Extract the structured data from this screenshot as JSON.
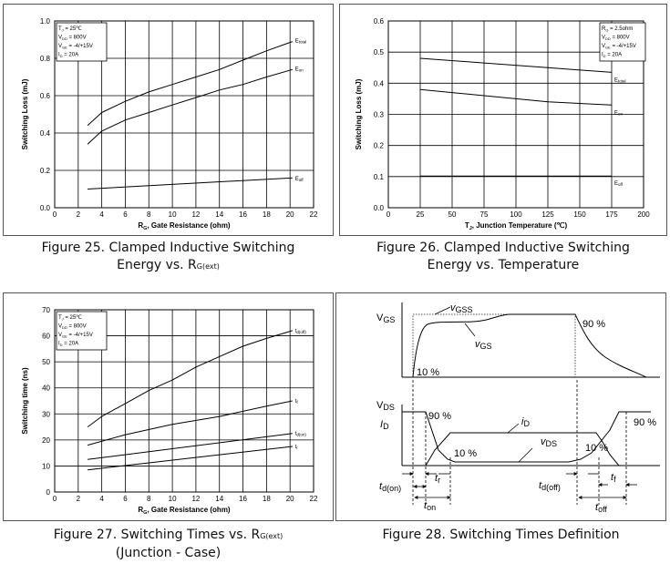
{
  "figures": [
    {
      "caption_line1": "Figure 25. Clamped Inductive Switching",
      "caption_line2_prefix": "Energy vs. R",
      "caption_line2_sub": "G(ext)",
      "conditions": [
        "T = 25℃",
        "V = 800V",
        "V = -4/+15V",
        "I = 20A"
      ]
    },
    {
      "caption_line1": "Figure 26. Clamped Inductive Switching",
      "caption_line2": "Energy vs. Temperature",
      "conditions": [
        "R = 2.5ohm",
        "V = 800V",
        "V = -4/+15V",
        "I = 20A"
      ]
    },
    {
      "caption_line1_prefix": "Figure 27. Switching Times vs. R",
      "caption_line1_sub": "G(ext)",
      "caption_line2": "(Junction - Case)",
      "conditions": [
        "T = 25℃",
        "V = 800V",
        "V = -4/+15V",
        "I = 20A"
      ]
    },
    {
      "caption": "Figure 28. Switching Times Definition"
    }
  ],
  "chart_data": [
    {
      "type": "line",
      "xlabel_main": "R",
      "xlabel_sub": "G",
      "xlabel_rest": ", Gate Resistance (ohm)",
      "ylabel": "Switching Loss (mJ)",
      "xlim": [
        0,
        22
      ],
      "ylim": [
        0,
        1.0
      ],
      "xticks": [
        0,
        2,
        4,
        6,
        8,
        10,
        12,
        14,
        16,
        18,
        20,
        22
      ],
      "yticks": [
        0.0,
        0.2,
        0.4,
        0.6,
        0.8,
        1.0
      ],
      "ytick_decimals": 1,
      "grid": true,
      "series": [
        {
          "name": "E",
          "name_sub": "total",
          "x": [
            2.8,
            4,
            6,
            8,
            10,
            12,
            14,
            16,
            18,
            20.2
          ],
          "values": [
            0.44,
            0.51,
            0.57,
            0.62,
            0.66,
            0.7,
            0.74,
            0.79,
            0.84,
            0.89
          ]
        },
        {
          "name": "E",
          "name_sub": "on",
          "x": [
            2.8,
            4,
            6,
            8,
            10,
            12,
            14,
            16,
            18,
            20.2
          ],
          "values": [
            0.34,
            0.41,
            0.47,
            0.51,
            0.55,
            0.59,
            0.63,
            0.66,
            0.7,
            0.74
          ]
        },
        {
          "name": "E",
          "name_sub": "off",
          "x": [
            2.8,
            20.2
          ],
          "values": [
            0.1,
            0.16
          ]
        }
      ]
    },
    {
      "type": "line",
      "xlabel_main": "T",
      "xlabel_sub": "J",
      "xlabel_rest": ", Junction Temperature (℃)",
      "ylabel": "Switching Loss (mJ)",
      "xlim": [
        0,
        200
      ],
      "ylim": [
        0,
        0.6
      ],
      "xticks": [
        0,
        25,
        50,
        75,
        100,
        125,
        150,
        175,
        200
      ],
      "yticks": [
        0.0,
        0.1,
        0.2,
        0.3,
        0.4,
        0.5,
        0.6
      ],
      "ytick_decimals": 1,
      "grid": true,
      "series": [
        {
          "name": "E",
          "name_sub": "total",
          "x": [
            25,
            75,
            125,
            175
          ],
          "values": [
            0.48,
            0.465,
            0.45,
            0.435
          ]
        },
        {
          "name": "E",
          "name_sub": "on",
          "x": [
            25,
            75,
            125,
            175
          ],
          "values": [
            0.38,
            0.36,
            0.34,
            0.33
          ]
        },
        {
          "name": "E",
          "name_sub": "off",
          "x": [
            25,
            175
          ],
          "values": [
            0.102,
            0.102
          ]
        }
      ]
    },
    {
      "type": "line",
      "xlabel_main": "R",
      "xlabel_sub": "G",
      "xlabel_rest": ", Gate Resistance (ohm)",
      "ylabel": "Switching time (ns)",
      "xlim": [
        0,
        22
      ],
      "ylim": [
        0,
        70
      ],
      "xticks": [
        0,
        2,
        4,
        6,
        8,
        10,
        12,
        14,
        16,
        18,
        20,
        22
      ],
      "yticks": [
        0,
        10,
        20,
        30,
        40,
        50,
        60,
        70
      ],
      "ytick_decimals": 0,
      "grid": true,
      "series": [
        {
          "name": "t",
          "name_sub": "d(off)",
          "x": [
            2.8,
            4,
            6,
            8,
            10,
            12,
            14,
            16,
            18,
            20.2
          ],
          "values": [
            25,
            29,
            34,
            39,
            43,
            48,
            52,
            56,
            59,
            62
          ]
        },
        {
          "name": "t",
          "name_sub": "f",
          "x": [
            2.8,
            6,
            10,
            14,
            18,
            20.2
          ],
          "values": [
            18,
            22,
            26,
            29,
            33,
            35
          ]
        },
        {
          "name": "t",
          "name_sub": "d(on)",
          "x": [
            2.8,
            20.2
          ],
          "values": [
            12.5,
            22.5
          ]
        },
        {
          "name": "t",
          "name_sub": "r",
          "x": [
            2.8,
            20.2
          ],
          "values": [
            8.5,
            17.5
          ]
        }
      ]
    }
  ],
  "timing_diagram": {
    "vgs_axis": "V",
    "vgs_axis_sub": "GS",
    "vgss_label": "v",
    "vgss_label_sub": "GSS",
    "vgs_curve_label": "v",
    "vgs_curve_label_sub": "GS",
    "vds_axis": "V",
    "vds_axis_sub": "DS",
    "id_axis": "I",
    "id_axis_sub": "D",
    "id_curve_label": "i",
    "id_curve_label_sub": "D",
    "vds_curve_label": "v",
    "vds_curve_label_sub": "DS",
    "pct90": "90 %",
    "pct10": "10 %",
    "tdon": "t",
    "tdon_sub": "d(on)",
    "tr": "t",
    "tr_sub": "r",
    "ton": "t",
    "ton_sub": "on",
    "tdoff": "t",
    "tdoff_sub": "d(off)",
    "tf": "t",
    "tf_sub": "f",
    "toff": "t",
    "toff_sub": "off"
  }
}
